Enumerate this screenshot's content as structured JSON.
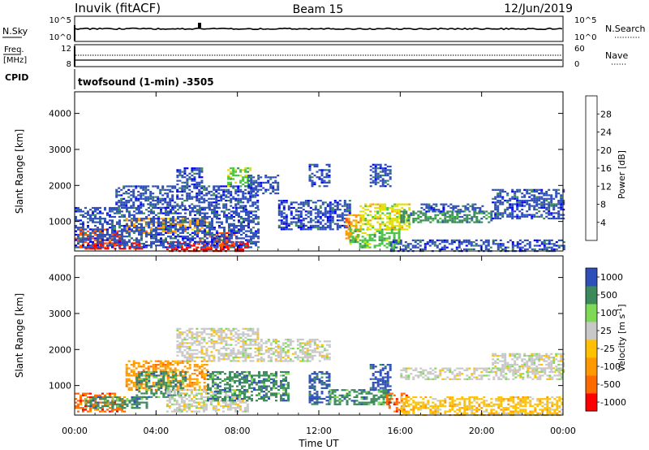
{
  "header": {
    "station": "Inuvik (fitACF)",
    "beam": "Beam 15",
    "date": "12/Jun/2019"
  },
  "status_panels": {
    "nsky": {
      "label": "N.Sky",
      "ticks": [
        "10^5",
        "10^0"
      ]
    },
    "nsearch": {
      "label": "N.Search",
      "ticks": [
        "10^5",
        "10^0"
      ]
    },
    "freq": {
      "label_top": "Freq.",
      "label_bottom": "[MHz]",
      "ticks": [
        "12",
        "8"
      ]
    },
    "nave": {
      "label": "Nave",
      "ticks": [
        "60",
        "0"
      ]
    },
    "cpid": {
      "label": "CPID",
      "program": "twofsound (1-min) -3505"
    }
  },
  "colors": {
    "power_scale": [
      "#0000ff",
      "#2e4fb8",
      "#3c8a5c",
      "#47c441",
      "#e0e000",
      "#ff9900",
      "#ff5500",
      "#ff0000"
    ],
    "velocity_scale": [
      "#ff0000",
      "#ff6a00",
      "#ff9900",
      "#ffc000",
      "#c8c8c8",
      "#7ed957",
      "#3c8a5c",
      "#2e4fb8"
    ]
  },
  "chart_data": [
    {
      "type": "heatmap",
      "title": "",
      "quantity": "Power",
      "xlabel": "Time UT",
      "ylabel": "Slant Range [km]",
      "xlim": [
        0,
        24
      ],
      "ylim": [
        180,
        4600
      ],
      "x_tick_labels": [
        "00:00",
        "04:00",
        "08:00",
        "12:00",
        "16:00",
        "20:00",
        "00:00"
      ],
      "y_tick_values": [
        1000,
        2000,
        3000,
        4000
      ],
      "y_tick_labels": [
        "1000",
        "2000",
        "3000",
        "4000"
      ],
      "colorbar": {
        "label": "Power [dB]",
        "range": [
          0,
          32
        ],
        "tick_labels": [
          "4",
          "8",
          "12",
          "16",
          "20",
          "24",
          "28"
        ]
      },
      "regions": [
        {
          "t0": 0.0,
          "t1": 2.2,
          "r0": 300,
          "r1": 800,
          "level": 6
        },
        {
          "t0": 0.5,
          "t1": 3.3,
          "r0": 250,
          "r1": 420,
          "level": 7
        },
        {
          "t0": 2.5,
          "t1": 6.5,
          "r0": 700,
          "r1": 1100,
          "level": 5
        },
        {
          "t0": 4.5,
          "t1": 8.5,
          "r0": 200,
          "r1": 450,
          "level": 7
        },
        {
          "t0": 6.0,
          "t1": 8.0,
          "r0": 300,
          "r1": 700,
          "level": 6
        },
        {
          "t0": 0.0,
          "t1": 9.0,
          "r0": 300,
          "r1": 1400,
          "level": 1
        },
        {
          "t0": 2.0,
          "t1": 9.0,
          "r0": 1400,
          "r1": 2000,
          "level": 1
        },
        {
          "t0": 5.0,
          "t1": 6.3,
          "r0": 2000,
          "r1": 2500,
          "level": 1
        },
        {
          "t0": 7.5,
          "t1": 8.6,
          "r0": 2000,
          "r1": 2500,
          "level": 3
        },
        {
          "t0": 8.5,
          "t1": 10.0,
          "r0": 1800,
          "r1": 2300,
          "level": 1
        },
        {
          "t0": 10.0,
          "t1": 13.5,
          "r0": 800,
          "r1": 1600,
          "level": 1
        },
        {
          "t0": 11.5,
          "t1": 12.5,
          "r0": 2000,
          "r1": 2600,
          "level": 1
        },
        {
          "t0": 13.3,
          "t1": 13.9,
          "r0": 500,
          "r1": 1200,
          "level": 5
        },
        {
          "t0": 13.5,
          "t1": 16.0,
          "r0": 300,
          "r1": 800,
          "level": 3
        },
        {
          "t0": 14.0,
          "t1": 16.5,
          "r0": 800,
          "r1": 1500,
          "level": 4
        },
        {
          "t0": 14.5,
          "t1": 15.5,
          "r0": 2000,
          "r1": 2600,
          "level": 1
        },
        {
          "t0": 15.5,
          "t1": 24.0,
          "r0": 200,
          "r1": 500,
          "level": 1
        },
        {
          "t0": 16.0,
          "t1": 20.5,
          "r0": 1000,
          "r1": 1300,
          "level": 2
        },
        {
          "t0": 17.0,
          "t1": 20.0,
          "r0": 1300,
          "r1": 1500,
          "level": 1
        },
        {
          "t0": 20.5,
          "t1": 24.0,
          "r0": 1100,
          "r1": 1900,
          "level": 1
        }
      ]
    },
    {
      "type": "heatmap",
      "title": "",
      "quantity": "Velocity",
      "xlabel": "Time UT",
      "ylabel": "Slant Range [km]",
      "xlim": [
        0,
        24
      ],
      "ylim": [
        180,
        4600
      ],
      "x_tick_labels": [
        "00:00",
        "04:00",
        "08:00",
        "12:00",
        "16:00",
        "20:00",
        "00:00"
      ],
      "y_tick_values": [
        1000,
        2000,
        3000,
        4000
      ],
      "y_tick_labels": [
        "1000",
        "2000",
        "3000",
        "4000"
      ],
      "colorbar": {
        "label": "Velocity [m s^-1]",
        "tick_labels": [
          "-1000",
          "-500",
          "-100",
          "-25",
          "25",
          "100",
          "500",
          "1000"
        ]
      },
      "regions": [
        {
          "t0": 0.0,
          "t1": 2.5,
          "r0": 300,
          "r1": 800,
          "level": 1
        },
        {
          "t0": 0.5,
          "t1": 3.5,
          "r0": 400,
          "r1": 700,
          "level": 6
        },
        {
          "t0": 2.5,
          "t1": 6.5,
          "r0": 900,
          "r1": 1700,
          "level": 2
        },
        {
          "t0": 3.0,
          "t1": 5.5,
          "r0": 700,
          "r1": 1400,
          "level": 6
        },
        {
          "t0": 4.5,
          "t1": 8.5,
          "r0": 300,
          "r1": 900,
          "level": 4
        },
        {
          "t0": 6.5,
          "t1": 10.5,
          "r0": 600,
          "r1": 1400,
          "level": 6
        },
        {
          "t0": 5.0,
          "t1": 9.0,
          "r0": 1700,
          "r1": 2600,
          "level": 4
        },
        {
          "t0": 9.0,
          "t1": 12.5,
          "r0": 1700,
          "r1": 2300,
          "level": 4
        },
        {
          "t0": 11.5,
          "t1": 12.5,
          "r0": 500,
          "r1": 1400,
          "level": 7
        },
        {
          "t0": 12.5,
          "t1": 15.5,
          "r0": 500,
          "r1": 900,
          "level": 6
        },
        {
          "t0": 14.5,
          "t1": 15.5,
          "r0": 900,
          "r1": 1600,
          "level": 7
        },
        {
          "t0": 15.3,
          "t1": 16.3,
          "r0": 300,
          "r1": 800,
          "level": 1
        },
        {
          "t0": 16.0,
          "t1": 24.0,
          "r0": 200,
          "r1": 700,
          "level": 3
        },
        {
          "t0": 16.0,
          "t1": 24.0,
          "r0": 1200,
          "r1": 1500,
          "level": 4
        },
        {
          "t0": 20.5,
          "t1": 24.0,
          "r0": 1400,
          "r1": 1900,
          "level": 4
        }
      ]
    }
  ]
}
